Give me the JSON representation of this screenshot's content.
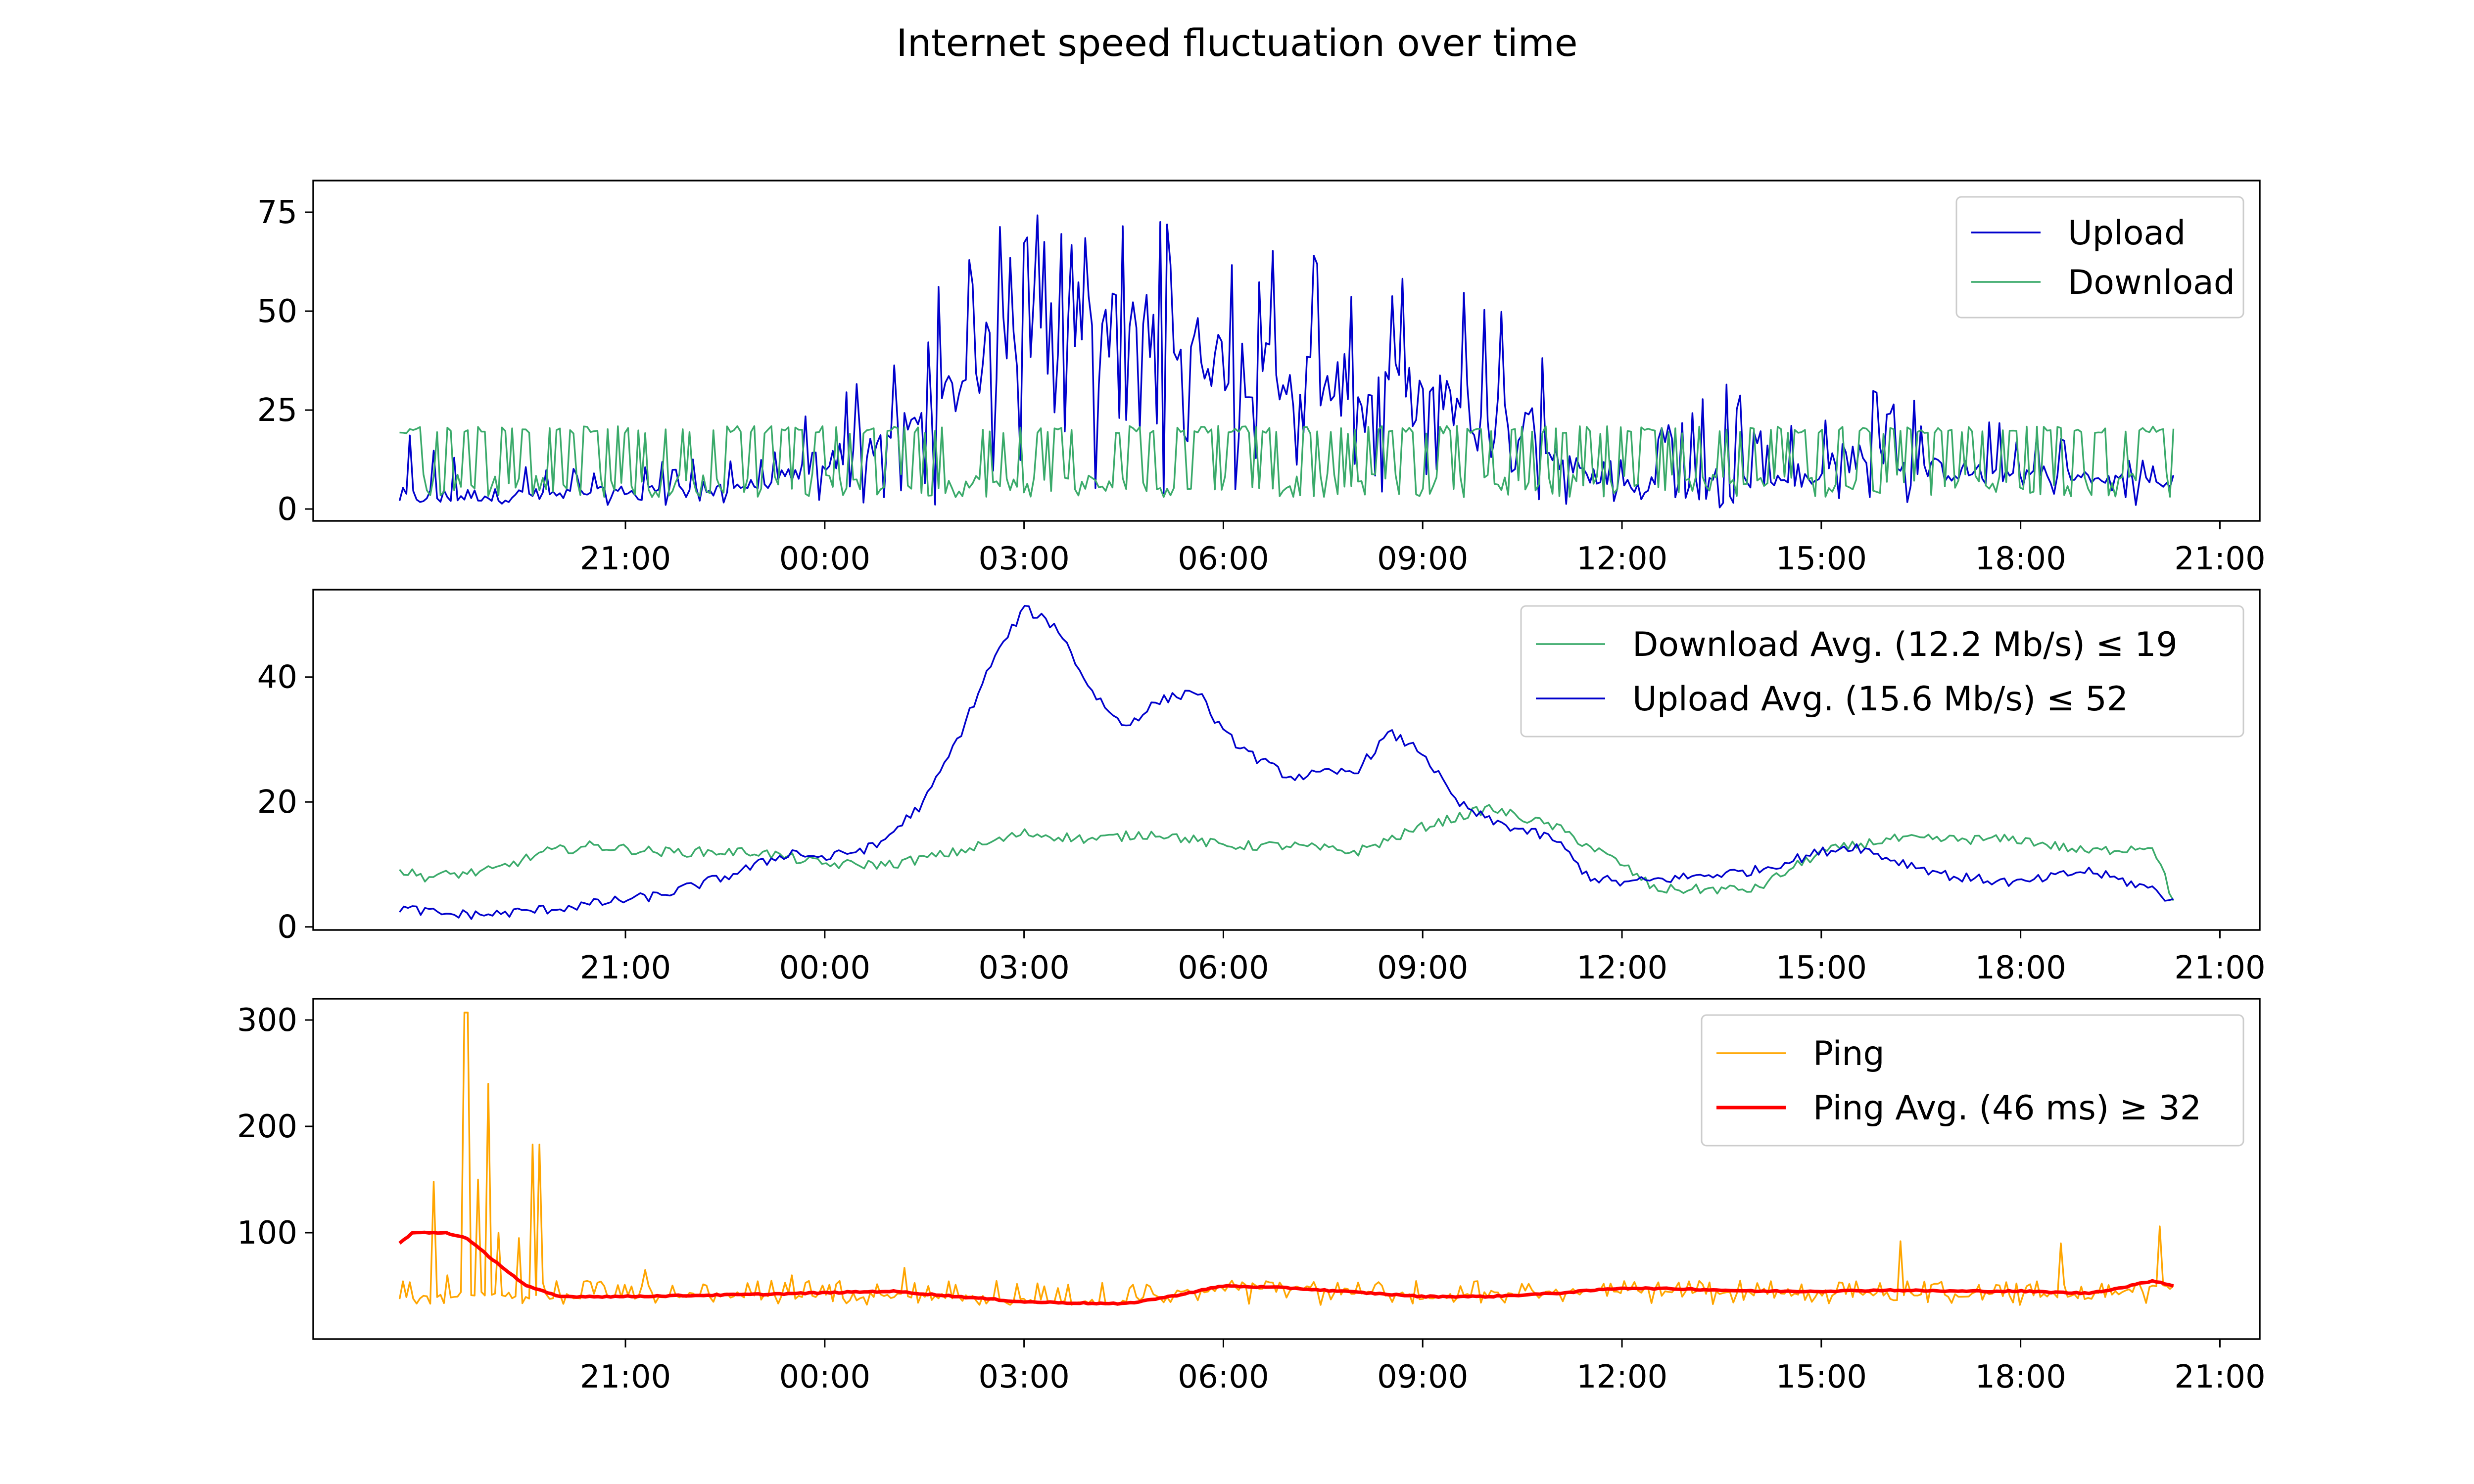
{
  "chart_data": {
    "type": "line",
    "title": "Internet speed fluctuation over time",
    "xlabel": "",
    "x_tick_labels": [
      "21:00",
      "00:00",
      "03:00",
      "06:00",
      "09:00",
      "12:00",
      "15:00",
      "18:00",
      "21:00"
    ],
    "x_ticks_hours": [
      21,
      24,
      27,
      30,
      33,
      36,
      39,
      42,
      45
    ],
    "xlim_hours": [
      16.3,
      45.6
    ],
    "data_range_hours": [
      17.6,
      44.3
    ],
    "panels": [
      {
        "name": "speed",
        "ylabel": "",
        "ylim": [
          -3,
          83
        ],
        "y_ticks": [
          0,
          25,
          50,
          75
        ],
        "legend_location": "upper right",
        "grid": false,
        "series": [
          {
            "name": "Upload",
            "color": "#0000cc",
            "style": "noisy",
            "envelope": [
              [
                17.6,
                3
              ],
              [
                20.0,
                4
              ],
              [
                23.0,
                6
              ],
              [
                24.0,
                12
              ],
              [
                25.5,
                22
              ],
              [
                26.5,
                40
              ],
              [
                27.5,
                50
              ],
              [
                29.0,
                45
              ],
              [
                30.0,
                38
              ],
              [
                31.5,
                32
              ],
              [
                33.0,
                28
              ],
              [
                34.5,
                22
              ],
              [
                35.4,
                8
              ],
              [
                37.0,
                5
              ],
              [
                38.5,
                8
              ],
              [
                39.5,
                14
              ],
              [
                40.5,
                10
              ],
              [
                42.0,
                9
              ],
              [
                43.5,
                8
              ],
              [
                44.3,
                6
              ]
            ],
            "min_values": [
              [
                17.6,
                1
              ],
              [
                44.3,
                1
              ]
            ],
            "max_values": [
              [
                17.6,
                20
              ],
              [
                20.0,
                10
              ],
              [
                23.5,
                15
              ],
              [
                24.0,
                40
              ],
              [
                25.0,
                35
              ],
              [
                26.0,
                65
              ],
              [
                27.0,
                78
              ],
              [
                28.5,
                77
              ],
              [
                30.0,
                70
              ],
              [
                32.0,
                65
              ],
              [
                33.5,
                60
              ],
              [
                35.3,
                45
              ],
              [
                35.5,
                10
              ],
              [
                37.0,
                25
              ],
              [
                37.5,
                50
              ],
              [
                38.0,
                20
              ],
              [
                39.5,
                33
              ],
              [
                41.0,
                25
              ],
              [
                42.5,
                20
              ],
              [
                44.3,
                10
              ]
            ]
          },
          {
            "name": "Download",
            "color": "#3aaa6a",
            "style": "noisy",
            "envelope": [
              [
                17.6,
                12
              ],
              [
                44.3,
                12
              ]
            ],
            "min_values": [
              [
                17.6,
                3
              ],
              [
                44.3,
                3
              ]
            ],
            "max_values": [
              [
                17.6,
                21
              ],
              [
                44.3,
                21
              ]
            ]
          }
        ]
      },
      {
        "name": "average",
        "ylabel": "",
        "ylim": [
          -0.5,
          54
        ],
        "y_ticks": [
          0,
          20,
          40
        ],
        "legend_location": "upper right",
        "grid": false,
        "series": [
          {
            "name": "Download Avg. (12.2 Mb/s) ≤ 19",
            "color": "#3aaa6a",
            "style": "smooth",
            "points": [
              [
                17.6,
                9
              ],
              [
                18.0,
                8
              ],
              [
                19.0,
                9
              ],
              [
                19.8,
                12
              ],
              [
                20.5,
                13
              ],
              [
                21.5,
                12
              ],
              [
                23.0,
                12
              ],
              [
                24.0,
                10
              ],
              [
                25.0,
                10
              ],
              [
                26.0,
                12
              ],
              [
                27.0,
                15
              ],
              [
                28.0,
                14
              ],
              [
                29.0,
                15
              ],
              [
                30.0,
                13
              ],
              [
                31.0,
                13
              ],
              [
                32.0,
                12
              ],
              [
                33.0,
                16
              ],
              [
                34.0,
                19
              ],
              [
                35.0,
                16
              ],
              [
                36.0,
                10
              ],
              [
                36.5,
                6
              ],
              [
                38.0,
                6
              ],
              [
                39.0,
                12
              ],
              [
                40.0,
                14
              ],
              [
                41.0,
                14
              ],
              [
                42.0,
                14
              ],
              [
                43.0,
                12
              ],
              [
                44.0,
                13
              ],
              [
                44.3,
                4
              ]
            ]
          },
          {
            "name": "Upload Avg. (15.6 Mb/s) ≤ 52",
            "color": "#0000cc",
            "style": "smooth",
            "points": [
              [
                17.6,
                3
              ],
              [
                18.3,
                2
              ],
              [
                19.0,
                2
              ],
              [
                20.0,
                3
              ],
              [
                21.5,
                5
              ],
              [
                22.5,
                8
              ],
              [
                23.5,
                12
              ],
              [
                24.0,
                11
              ],
              [
                24.8,
                13
              ],
              [
                25.5,
                20
              ],
              [
                26.0,
                30
              ],
              [
                26.5,
                42
              ],
              [
                27.0,
                51
              ],
              [
                27.5,
                48
              ],
              [
                28.0,
                38
              ],
              [
                28.5,
                32
              ],
              [
                29.0,
                36
              ],
              [
                29.6,
                38
              ],
              [
                30.0,
                31
              ],
              [
                30.5,
                27
              ],
              [
                31.0,
                24
              ],
              [
                32.0,
                25
              ],
              [
                32.5,
                31
              ],
              [
                33.0,
                28
              ],
              [
                33.5,
                20
              ],
              [
                34.0,
                17
              ],
              [
                35.0,
                14
              ],
              [
                35.5,
                8
              ],
              [
                36.0,
                7
              ],
              [
                37.0,
                8
              ],
              [
                38.0,
                9
              ],
              [
                39.0,
                12
              ],
              [
                39.5,
                13
              ],
              [
                40.0,
                11
              ],
              [
                41.0,
                8
              ],
              [
                42.0,
                7
              ],
              [
                43.0,
                9
              ],
              [
                44.0,
                6
              ],
              [
                44.3,
                4
              ]
            ]
          }
        ]
      },
      {
        "name": "ping",
        "ylabel": "",
        "ylim": [
          0,
          320
        ],
        "y_ticks": [
          100,
          200,
          300
        ],
        "legend_location": "upper right",
        "grid": false,
        "series": [
          {
            "name": "Ping",
            "color": "#ffa500",
            "style": "noisy",
            "envelope": [
              [
                17.6,
                40
              ],
              [
                18.4,
                42
              ],
              [
                20.5,
                40
              ],
              [
                23.0,
                42
              ],
              [
                26.0,
                40
              ],
              [
                27.0,
                35
              ],
              [
                28.5,
                35
              ],
              [
                29.5,
                45
              ],
              [
                30.5,
                50
              ],
              [
                33.0,
                40
              ],
              [
                35.0,
                45
              ],
              [
                38.0,
                45
              ],
              [
                41.0,
                42
              ],
              [
                42.0,
                42
              ],
              [
                43.0,
                40
              ],
              [
                44.3,
                50
              ]
            ],
            "min_values": [
              [
                17.6,
                32
              ],
              [
                44.3,
                32
              ]
            ],
            "max_values": [
              [
                17.6,
                55
              ],
              [
                44.3,
                55
              ]
            ],
            "spikes": [
              [
                18.1,
                148
              ],
              [
                18.3,
                60
              ],
              [
                18.6,
                307
              ],
              [
                18.8,
                150
              ],
              [
                18.95,
                240
              ],
              [
                19.1,
                100
              ],
              [
                19.4,
                95
              ],
              [
                19.6,
                183
              ],
              [
                19.7,
                183
              ],
              [
                21.3,
                65
              ],
              [
                23.5,
                60
              ],
              [
                25.2,
                67
              ],
              [
                40.2,
                92
              ],
              [
                42.6,
                90
              ],
              [
                44.1,
                106
              ]
            ]
          },
          {
            "name": "Ping Avg. (46 ms) ≥ 32",
            "color": "#ff0000",
            "style": "smooth",
            "points": [
              [
                17.6,
                90
              ],
              [
                17.8,
                100
              ],
              [
                18.3,
                100
              ],
              [
                18.6,
                95
              ],
              [
                19.0,
                75
              ],
              [
                19.5,
                50
              ],
              [
                20.0,
                40
              ],
              [
                21.0,
                40
              ],
              [
                23.0,
                42
              ],
              [
                25.0,
                45
              ],
              [
                26.0,
                40
              ],
              [
                27.0,
                35
              ],
              [
                28.5,
                33
              ],
              [
                29.2,
                40
              ],
              [
                30.0,
                50
              ],
              [
                31.0,
                48
              ],
              [
                32.0,
                44
              ],
              [
                33.0,
                40
              ],
              [
                34.0,
                40
              ],
              [
                35.0,
                43
              ],
              [
                36.0,
                48
              ],
              [
                37.0,
                47
              ],
              [
                38.0,
                45
              ],
              [
                39.0,
                45
              ],
              [
                40.0,
                46
              ],
              [
                41.0,
                45
              ],
              [
                42.0,
                45
              ],
              [
                43.0,
                43
              ],
              [
                43.5,
                48
              ],
              [
                44.0,
                55
              ],
              [
                44.3,
                50
              ]
            ]
          }
        ]
      }
    ]
  }
}
